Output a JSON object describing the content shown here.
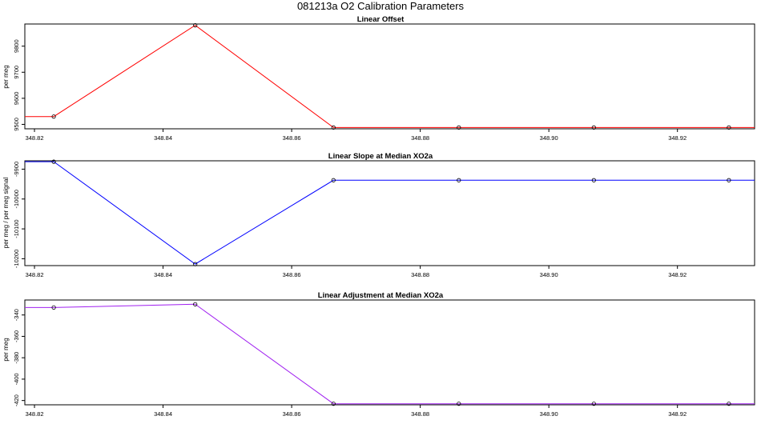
{
  "figure": {
    "title": "081213a   O2 Calibration Parameters"
  },
  "chart_data": [
    {
      "type": "line",
      "title": "Linear Offset",
      "xlabel": "",
      "ylabel": "per meg",
      "color": "#ff0000",
      "xlim": [
        348.8185,
        348.932
      ],
      "ylim": [
        9483,
        9885
      ],
      "xticks": [
        "348.82",
        "348.84",
        "348.86",
        "348.88",
        "348.90",
        "348.92"
      ],
      "yticks": [
        "9500",
        "9600",
        "9700",
        "9800"
      ],
      "x": [
        348.8185,
        348.823,
        348.845,
        348.8665,
        348.886,
        348.907,
        348.928,
        348.932
      ],
      "y": [
        9530,
        9530,
        9880,
        9488,
        9488,
        9488,
        9488,
        9488
      ],
      "markers": [
        1,
        2,
        3,
        4,
        5,
        6
      ]
    },
    {
      "type": "line",
      "title": "Linear Slope at Median XO2a",
      "xlabel": "",
      "ylabel": "per meg / per meg signal",
      "color": "#0000ff",
      "xlim": [
        348.8185,
        348.932
      ],
      "ylim": [
        -10223,
        -9872
      ],
      "xticks": [
        "348.82",
        "348.84",
        "348.86",
        "348.88",
        "348.90",
        "348.92"
      ],
      "yticks": [
        "-10200",
        "-10100",
        "-10000",
        "-9900"
      ],
      "x": [
        348.8185,
        348.823,
        348.845,
        348.8665,
        348.886,
        348.907,
        348.928,
        348.932
      ],
      "y": [
        -9875,
        -9875,
        -10218,
        -9937,
        -9937,
        -9937,
        -9937,
        -9937
      ],
      "markers": [
        1,
        2,
        3,
        4,
        5,
        6
      ]
    },
    {
      "type": "line",
      "title": "Linear Adjustment at Median XO2a",
      "xlabel": "",
      "ylabel": "per meg",
      "color": "#a020f0",
      "xlim": [
        348.8185,
        348.932
      ],
      "ylim": [
        -424,
        -326
      ],
      "xticks": [
        "348.82",
        "348.84",
        "348.86",
        "348.88",
        "348.90",
        "348.92"
      ],
      "yticks": [
        "-420",
        "-400",
        "-380",
        "-360",
        "-340"
      ],
      "x": [
        348.8185,
        348.823,
        348.845,
        348.8665,
        348.886,
        348.907,
        348.928,
        348.932
      ],
      "y": [
        -333,
        -333,
        -330,
        -423,
        -423,
        -423,
        -423,
        -423
      ],
      "markers": [
        1,
        2,
        3,
        4,
        5,
        6
      ]
    }
  ]
}
